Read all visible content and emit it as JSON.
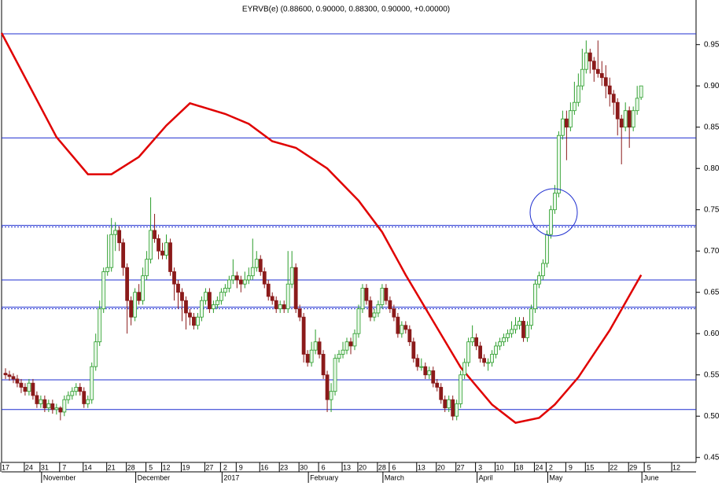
{
  "chart_data": {
    "type": "candlestick",
    "title": "EYRVB(e) (0.88600, 0.90000, 0.88300, 0.90000, +0.00000)",
    "up_color": "#2a9d2a",
    "down_color": "#8b1a1a",
    "xlim": [
      -1,
      176
    ],
    "ylim": [
      0.444,
      1.004
    ],
    "yticks": [
      {
        "value": 0.45,
        "label": "0.45"
      },
      {
        "value": 0.5,
        "label": "0.50"
      },
      0.55,
      {
        "value": 0.6,
        "label": "0.60"
      },
      0.65,
      {
        "value": 0.7,
        "label": "0.70"
      },
      0.75,
      {
        "value": 0.8,
        "label": "0.80"
      },
      0.85,
      {
        "value": 0.9,
        "label": "0.90"
      },
      0.95
    ],
    "xticks": [
      {
        "value": 0,
        "label": "17"
      },
      {
        "value": 6,
        "label": "24"
      },
      {
        "value": 10,
        "label": "31"
      },
      {
        "value": 15,
        "label": "7"
      },
      {
        "value": 21,
        "label": "14"
      },
      {
        "value": 27,
        "label": "21"
      },
      {
        "value": 32,
        "label": "28"
      },
      {
        "value": 37,
        "label": "5"
      },
      {
        "value": 41,
        "label": "12"
      },
      {
        "value": 46,
        "label": "19"
      },
      {
        "value": 52,
        "label": "27"
      },
      {
        "value": 56,
        "label": "2"
      },
      {
        "value": 60,
        "label": "9"
      },
      {
        "value": 66,
        "label": "16"
      },
      {
        "value": 71,
        "label": "23"
      },
      {
        "value": 76,
        "label": "30"
      },
      {
        "value": 81,
        "label": "6"
      },
      {
        "value": 87,
        "label": "13"
      },
      {
        "value": 91,
        "label": "20"
      },
      {
        "value": 96,
        "label": "28"
      },
      {
        "value": 99,
        "label": "6"
      },
      {
        "value": 106,
        "label": "13"
      },
      {
        "value": 111,
        "label": "20"
      },
      {
        "value": 116,
        "label": "27"
      },
      {
        "value": 121,
        "label": "3"
      },
      {
        "value": 126,
        "label": "10"
      },
      {
        "value": 131,
        "label": "18"
      },
      {
        "value": 136,
        "label": "24"
      },
      {
        "value": 139,
        "label": "2"
      },
      {
        "value": 144,
        "label": "9"
      },
      {
        "value": 149,
        "label": "15"
      },
      {
        "value": 155,
        "label": "22"
      },
      {
        "value": 160,
        "label": "29"
      },
      {
        "value": 164,
        "label": "5"
      },
      {
        "value": 171,
        "label": "12"
      }
    ],
    "months": [
      {
        "value": 10,
        "label": "November"
      },
      {
        "value": 34,
        "label": "December"
      },
      {
        "value": 56,
        "label": "2017"
      },
      {
        "value": 78,
        "label": "February"
      },
      {
        "value": 97,
        "label": "March"
      },
      {
        "value": 121,
        "label": "April"
      },
      {
        "value": 139,
        "label": "May"
      },
      {
        "value": 163,
        "label": "June"
      }
    ],
    "hline_color": "#1f2fd0",
    "hlines": [
      0.963,
      0.837,
      0.731,
      0.665,
      0.632,
      0.544,
      0.508
    ],
    "hline_styles": [
      "solid",
      "solid",
      "double",
      "solid",
      "double",
      "solid",
      "solid"
    ],
    "ma": {
      "color": "#e00000",
      "x": [
        -1,
        13,
        21,
        27,
        34,
        41,
        47,
        56,
        62,
        68,
        74,
        82,
        90,
        96,
        102,
        108,
        116,
        124,
        130,
        136,
        140,
        146,
        154,
        162
      ],
      "values": [
        0.964,
        0.838,
        0.793,
        0.793,
        0.814,
        0.852,
        0.879,
        0.866,
        0.854,
        0.833,
        0.825,
        0.8,
        0.761,
        0.723,
        0.671,
        0.623,
        0.559,
        0.514,
        0.492,
        0.498,
        0.514,
        0.547,
        0.604,
        0.671
      ]
    },
    "ohlc": [
      [
        0.552,
        0.558,
        0.545,
        0.55
      ],
      [
        0.55,
        0.555,
        0.543,
        0.548
      ],
      [
        0.548,
        0.552,
        0.54,
        0.545
      ],
      [
        0.545,
        0.55,
        0.535,
        0.54
      ],
      [
        0.54,
        0.545,
        0.528,
        0.535
      ],
      [
        0.535,
        0.54,
        0.525,
        0.53
      ],
      [
        0.53,
        0.545,
        0.525,
        0.54
      ],
      [
        0.54,
        0.545,
        0.52,
        0.525
      ],
      [
        0.525,
        0.53,
        0.51,
        0.515
      ],
      [
        0.515,
        0.525,
        0.51,
        0.52
      ],
      [
        0.52,
        0.525,
        0.505,
        0.51
      ],
      [
        0.51,
        0.52,
        0.505,
        0.515
      ],
      [
        0.515,
        0.52,
        0.503,
        0.508
      ],
      [
        0.508,
        0.515,
        0.502,
        0.51
      ],
      [
        0.51,
        0.512,
        0.495,
        0.505
      ],
      [
        0.505,
        0.525,
        0.5,
        0.52
      ],
      [
        0.52,
        0.53,
        0.515,
        0.525
      ],
      [
        0.525,
        0.535,
        0.52,
        0.53
      ],
      [
        0.53,
        0.54,
        0.525,
        0.535
      ],
      [
        0.535,
        0.54,
        0.525,
        0.53
      ],
      [
        0.53,
        0.535,
        0.51,
        0.515
      ],
      [
        0.515,
        0.525,
        0.51,
        0.52
      ],
      [
        0.52,
        0.565,
        0.515,
        0.56
      ],
      [
        0.56,
        0.6,
        0.555,
        0.59
      ],
      [
        0.59,
        0.64,
        0.585,
        0.63
      ],
      [
        0.63,
        0.68,
        0.625,
        0.675
      ],
      [
        0.675,
        0.72,
        0.67,
        0.68
      ],
      [
        0.68,
        0.74,
        0.675,
        0.72
      ],
      [
        0.72,
        0.735,
        0.7,
        0.725
      ],
      [
        0.725,
        0.73,
        0.7,
        0.71
      ],
      [
        0.71,
        0.715,
        0.67,
        0.68
      ],
      [
        0.68,
        0.685,
        0.6,
        0.64
      ],
      [
        0.64,
        0.645,
        0.61,
        0.62
      ],
      [
        0.62,
        0.655,
        0.615,
        0.65
      ],
      [
        0.65,
        0.66,
        0.635,
        0.64
      ],
      [
        0.64,
        0.68,
        0.635,
        0.67
      ],
      [
        0.67,
        0.7,
        0.665,
        0.69
      ],
      [
        0.69,
        0.765,
        0.685,
        0.725
      ],
      [
        0.725,
        0.745,
        0.71,
        0.715
      ],
      [
        0.715,
        0.72,
        0.69,
        0.7
      ],
      [
        0.7,
        0.71,
        0.69,
        0.695
      ],
      [
        0.695,
        0.72,
        0.69,
        0.71
      ],
      [
        0.71,
        0.715,
        0.67,
        0.675
      ],
      [
        0.675,
        0.68,
        0.64,
        0.66
      ],
      [
        0.66,
        0.665,
        0.63,
        0.65
      ],
      [
        0.65,
        0.655,
        0.615,
        0.64
      ],
      [
        0.64,
        0.645,
        0.605,
        0.625
      ],
      [
        0.625,
        0.63,
        0.61,
        0.62
      ],
      [
        0.62,
        0.625,
        0.605,
        0.61
      ],
      [
        0.61,
        0.625,
        0.605,
        0.62
      ],
      [
        0.62,
        0.645,
        0.615,
        0.64
      ],
      [
        0.64,
        0.655,
        0.635,
        0.65
      ],
      [
        0.65,
        0.655,
        0.625,
        0.63
      ],
      [
        0.63,
        0.64,
        0.625,
        0.635
      ],
      [
        0.635,
        0.645,
        0.63,
        0.64
      ],
      [
        0.64,
        0.655,
        0.635,
        0.65
      ],
      [
        0.65,
        0.66,
        0.645,
        0.655
      ],
      [
        0.655,
        0.67,
        0.65,
        0.665
      ],
      [
        0.665,
        0.69,
        0.66,
        0.67
      ],
      [
        0.67,
        0.675,
        0.655,
        0.665
      ],
      [
        0.665,
        0.67,
        0.65,
        0.66
      ],
      [
        0.66,
        0.675,
        0.655,
        0.665
      ],
      [
        0.665,
        0.68,
        0.66,
        0.67
      ],
      [
        0.67,
        0.715,
        0.665,
        0.68
      ],
      [
        0.68,
        0.7,
        0.675,
        0.69
      ],
      [
        0.69,
        0.695,
        0.67,
        0.675
      ],
      [
        0.675,
        0.68,
        0.655,
        0.66
      ],
      [
        0.66,
        0.665,
        0.64,
        0.645
      ],
      [
        0.645,
        0.65,
        0.635,
        0.64
      ],
      [
        0.64,
        0.645,
        0.625,
        0.63
      ],
      [
        0.63,
        0.64,
        0.625,
        0.635
      ],
      [
        0.635,
        0.64,
        0.625,
        0.63
      ],
      [
        0.63,
        0.7,
        0.625,
        0.66
      ],
      [
        0.66,
        0.7,
        0.655,
        0.68
      ],
      [
        0.68,
        0.685,
        0.625,
        0.63
      ],
      [
        0.63,
        0.635,
        0.615,
        0.62
      ],
      [
        0.62,
        0.625,
        0.565,
        0.575
      ],
      [
        0.575,
        0.58,
        0.56,
        0.565
      ],
      [
        0.565,
        0.59,
        0.56,
        0.58
      ],
      [
        0.58,
        0.605,
        0.575,
        0.59
      ],
      [
        0.59,
        0.595,
        0.57,
        0.575
      ],
      [
        0.575,
        0.58,
        0.545,
        0.55
      ],
      [
        0.55,
        0.555,
        0.505,
        0.52
      ],
      [
        0.52,
        0.54,
        0.505,
        0.53
      ],
      [
        0.53,
        0.575,
        0.525,
        0.57
      ],
      [
        0.57,
        0.58,
        0.565,
        0.575
      ],
      [
        0.575,
        0.59,
        0.57,
        0.58
      ],
      [
        0.58,
        0.595,
        0.575,
        0.59
      ],
      [
        0.59,
        0.595,
        0.575,
        0.585
      ],
      [
        0.585,
        0.605,
        0.58,
        0.6
      ],
      [
        0.6,
        0.635,
        0.595,
        0.63
      ],
      [
        0.63,
        0.66,
        0.625,
        0.655
      ],
      [
        0.655,
        0.66,
        0.635,
        0.64
      ],
      [
        0.64,
        0.645,
        0.615,
        0.62
      ],
      [
        0.62,
        0.63,
        0.615,
        0.625
      ],
      [
        0.625,
        0.64,
        0.62,
        0.635
      ],
      [
        0.635,
        0.66,
        0.63,
        0.655
      ],
      [
        0.655,
        0.66,
        0.635,
        0.64
      ],
      [
        0.64,
        0.645,
        0.625,
        0.63
      ],
      [
        0.63,
        0.635,
        0.615,
        0.62
      ],
      [
        0.62,
        0.625,
        0.595,
        0.6
      ],
      [
        0.6,
        0.615,
        0.595,
        0.61
      ],
      [
        0.61,
        0.615,
        0.6,
        0.605
      ],
      [
        0.605,
        0.61,
        0.585,
        0.59
      ],
      [
        0.59,
        0.595,
        0.565,
        0.57
      ],
      [
        0.57,
        0.575,
        0.555,
        0.56
      ],
      [
        0.56,
        0.57,
        0.555,
        0.56
      ],
      [
        0.56,
        0.565,
        0.545,
        0.55
      ],
      [
        0.55,
        0.56,
        0.545,
        0.555
      ],
      [
        0.555,
        0.56,
        0.535,
        0.54
      ],
      [
        0.54,
        0.545,
        0.53,
        0.535
      ],
      [
        0.535,
        0.54,
        0.515,
        0.52
      ],
      [
        0.52,
        0.525,
        0.505,
        0.51
      ],
      [
        0.51,
        0.525,
        0.505,
        0.52
      ],
      [
        0.52,
        0.525,
        0.495,
        0.5
      ],
      [
        0.5,
        0.52,
        0.495,
        0.515
      ],
      [
        0.515,
        0.555,
        0.51,
        0.55
      ],
      [
        0.55,
        0.57,
        0.545,
        0.565
      ],
      [
        0.565,
        0.595,
        0.56,
        0.59
      ],
      [
        0.59,
        0.61,
        0.585,
        0.595
      ],
      [
        0.595,
        0.6,
        0.58,
        0.585
      ],
      [
        0.585,
        0.59,
        0.565,
        0.57
      ],
      [
        0.57,
        0.575,
        0.56,
        0.565
      ],
      [
        0.565,
        0.57,
        0.555,
        0.565
      ],
      [
        0.565,
        0.58,
        0.56,
        0.575
      ],
      [
        0.575,
        0.59,
        0.57,
        0.585
      ],
      [
        0.585,
        0.595,
        0.58,
        0.59
      ],
      [
        0.59,
        0.6,
        0.585,
        0.595
      ],
      [
        0.595,
        0.605,
        0.59,
        0.6
      ],
      [
        0.6,
        0.615,
        0.595,
        0.605
      ],
      [
        0.605,
        0.62,
        0.6,
        0.61
      ],
      [
        0.61,
        0.62,
        0.605,
        0.615
      ],
      [
        0.615,
        0.62,
        0.59,
        0.595
      ],
      [
        0.595,
        0.615,
        0.59,
        0.61
      ],
      [
        0.61,
        0.635,
        0.605,
        0.63
      ],
      [
        0.63,
        0.665,
        0.625,
        0.66
      ],
      [
        0.66,
        0.675,
        0.655,
        0.67
      ],
      [
        0.67,
        0.69,
        0.665,
        0.685
      ],
      [
        0.685,
        0.725,
        0.68,
        0.72
      ],
      [
        0.72,
        0.755,
        0.715,
        0.75
      ],
      [
        0.75,
        0.78,
        0.745,
        0.77
      ],
      [
        0.77,
        0.845,
        0.765,
        0.84
      ],
      [
        0.84,
        0.87,
        0.835,
        0.86
      ],
      [
        0.86,
        0.87,
        0.81,
        0.85
      ],
      [
        0.85,
        0.88,
        0.845,
        0.87
      ],
      [
        0.87,
        0.905,
        0.865,
        0.88
      ],
      [
        0.88,
        0.915,
        0.875,
        0.9
      ],
      [
        0.9,
        0.945,
        0.895,
        0.92
      ],
      [
        0.92,
        0.955,
        0.915,
        0.94
      ],
      [
        0.94,
        0.945,
        0.915,
        0.93
      ],
      [
        0.93,
        0.935,
        0.905,
        0.92
      ],
      [
        0.92,
        0.955,
        0.91,
        0.915
      ],
      [
        0.915,
        0.93,
        0.9,
        0.91
      ],
      [
        0.91,
        0.925,
        0.885,
        0.9
      ],
      [
        0.9,
        0.91,
        0.875,
        0.89
      ],
      [
        0.89,
        0.895,
        0.865,
        0.88
      ],
      [
        0.88,
        0.885,
        0.84,
        0.86
      ],
      [
        0.86,
        0.865,
        0.805,
        0.85
      ],
      [
        0.85,
        0.88,
        0.845,
        0.87
      ],
      [
        0.87,
        0.875,
        0.825,
        0.85
      ],
      [
        0.85,
        0.875,
        0.845,
        0.87
      ],
      [
        0.87,
        0.9,
        0.865,
        0.885
      ],
      [
        0.886,
        0.9,
        0.883,
        0.9
      ]
    ]
  }
}
